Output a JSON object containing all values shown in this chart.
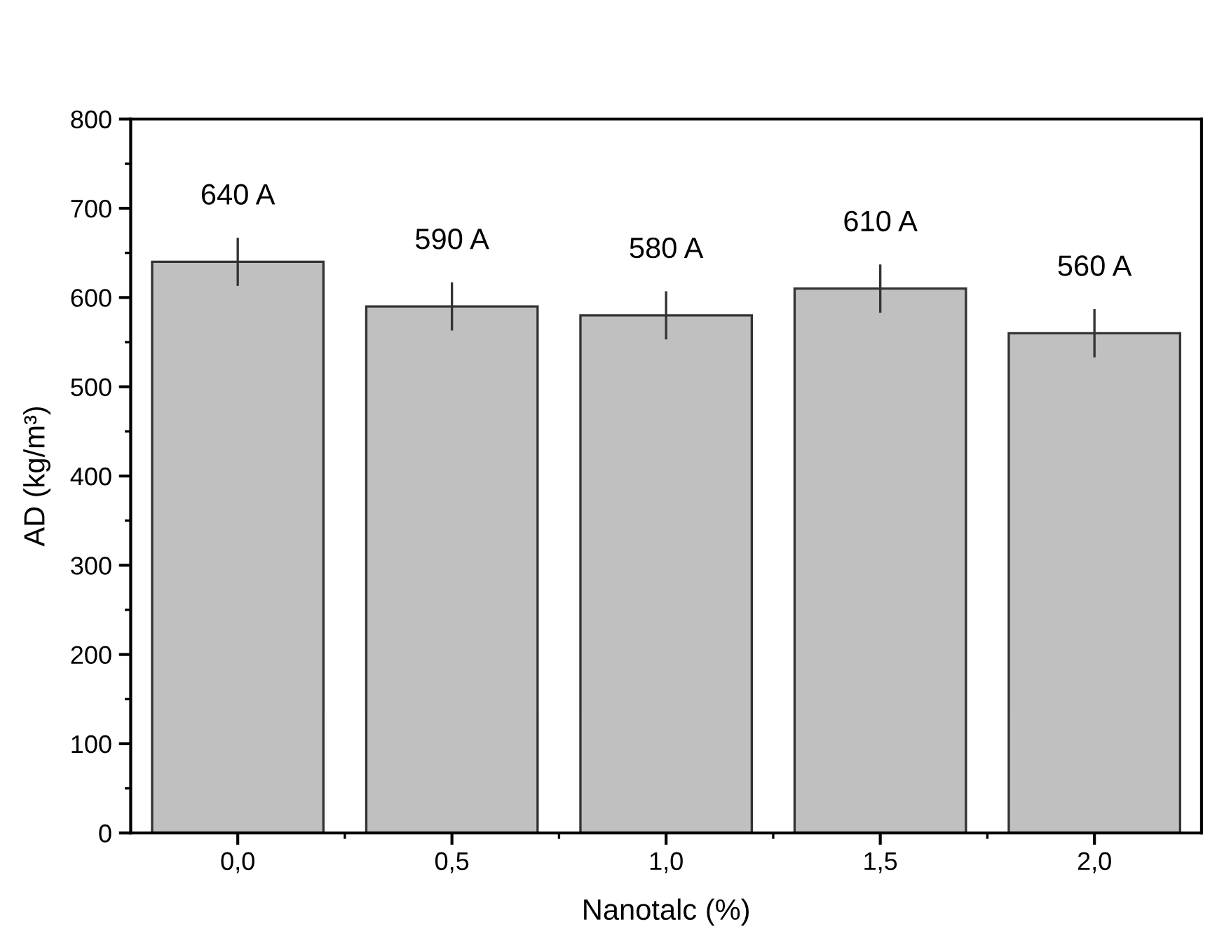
{
  "chart_data": {
    "type": "bar",
    "xlabel": "Nanotalc (%)",
    "ylabel": "AD (kg/m³)",
    "categories": [
      "0,0",
      "0,5",
      "1,0",
      "1,5",
      "2,0"
    ],
    "values": [
      640,
      590,
      580,
      610,
      560
    ],
    "errors": [
      27,
      27,
      27,
      27,
      27
    ],
    "value_labels": [
      "640 A",
      "590 A",
      "580 A",
      "610 A",
      "560 A"
    ],
    "color": "#c0c0c0",
    "ylim": [
      0,
      800
    ],
    "yticks": [
      0,
      100,
      200,
      300,
      400,
      500,
      600,
      700,
      800
    ],
    "grid": false,
    "legend": false
  }
}
